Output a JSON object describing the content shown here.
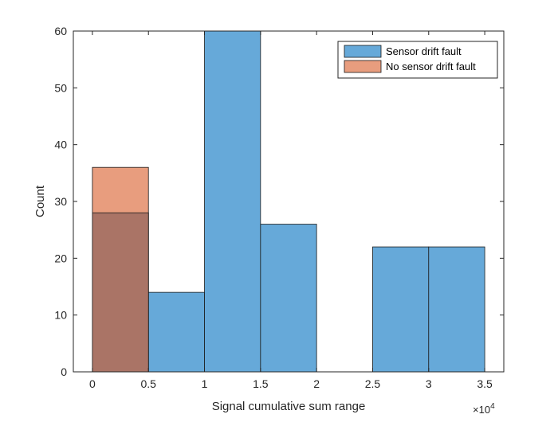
{
  "chart_data": {
    "type": "bar",
    "subtype": "histogram-overlay",
    "title": "",
    "xlabel": "Signal cumulative sum range",
    "ylabel": "Count",
    "x_exponent_label": "×10",
    "x_exponent_power": "4",
    "xlim": [
      -0.17,
      3.67
    ],
    "ylim": [
      0,
      60
    ],
    "xticks": [
      0,
      0.5,
      1,
      1.5,
      2,
      2.5,
      3,
      3.5
    ],
    "xtick_labels": [
      "0",
      "0.5",
      "1",
      "1.5",
      "2",
      "2.5",
      "3",
      "3.5"
    ],
    "yticks": [
      0,
      10,
      20,
      30,
      40,
      50,
      60
    ],
    "ytick_labels": [
      "0",
      "10",
      "20",
      "30",
      "40",
      "50",
      "60"
    ],
    "bin_edges": [
      0,
      0.5,
      1,
      1.5,
      2,
      2.5,
      3,
      3.5
    ],
    "series": [
      {
        "name": "Sensor drift fault",
        "color": "#0072BD",
        "fill": "#66A9D9",
        "values": [
          28,
          14,
          60,
          26,
          0,
          22,
          22
        ]
      },
      {
        "name": "No sensor drift fault",
        "color": "#D95319",
        "fill": "#E89D7E",
        "values": [
          36,
          0,
          0,
          0,
          0,
          0,
          0
        ]
      }
    ],
    "overlap_fill": "#AA7466",
    "legend_position": "top-right",
    "grid": false
  }
}
